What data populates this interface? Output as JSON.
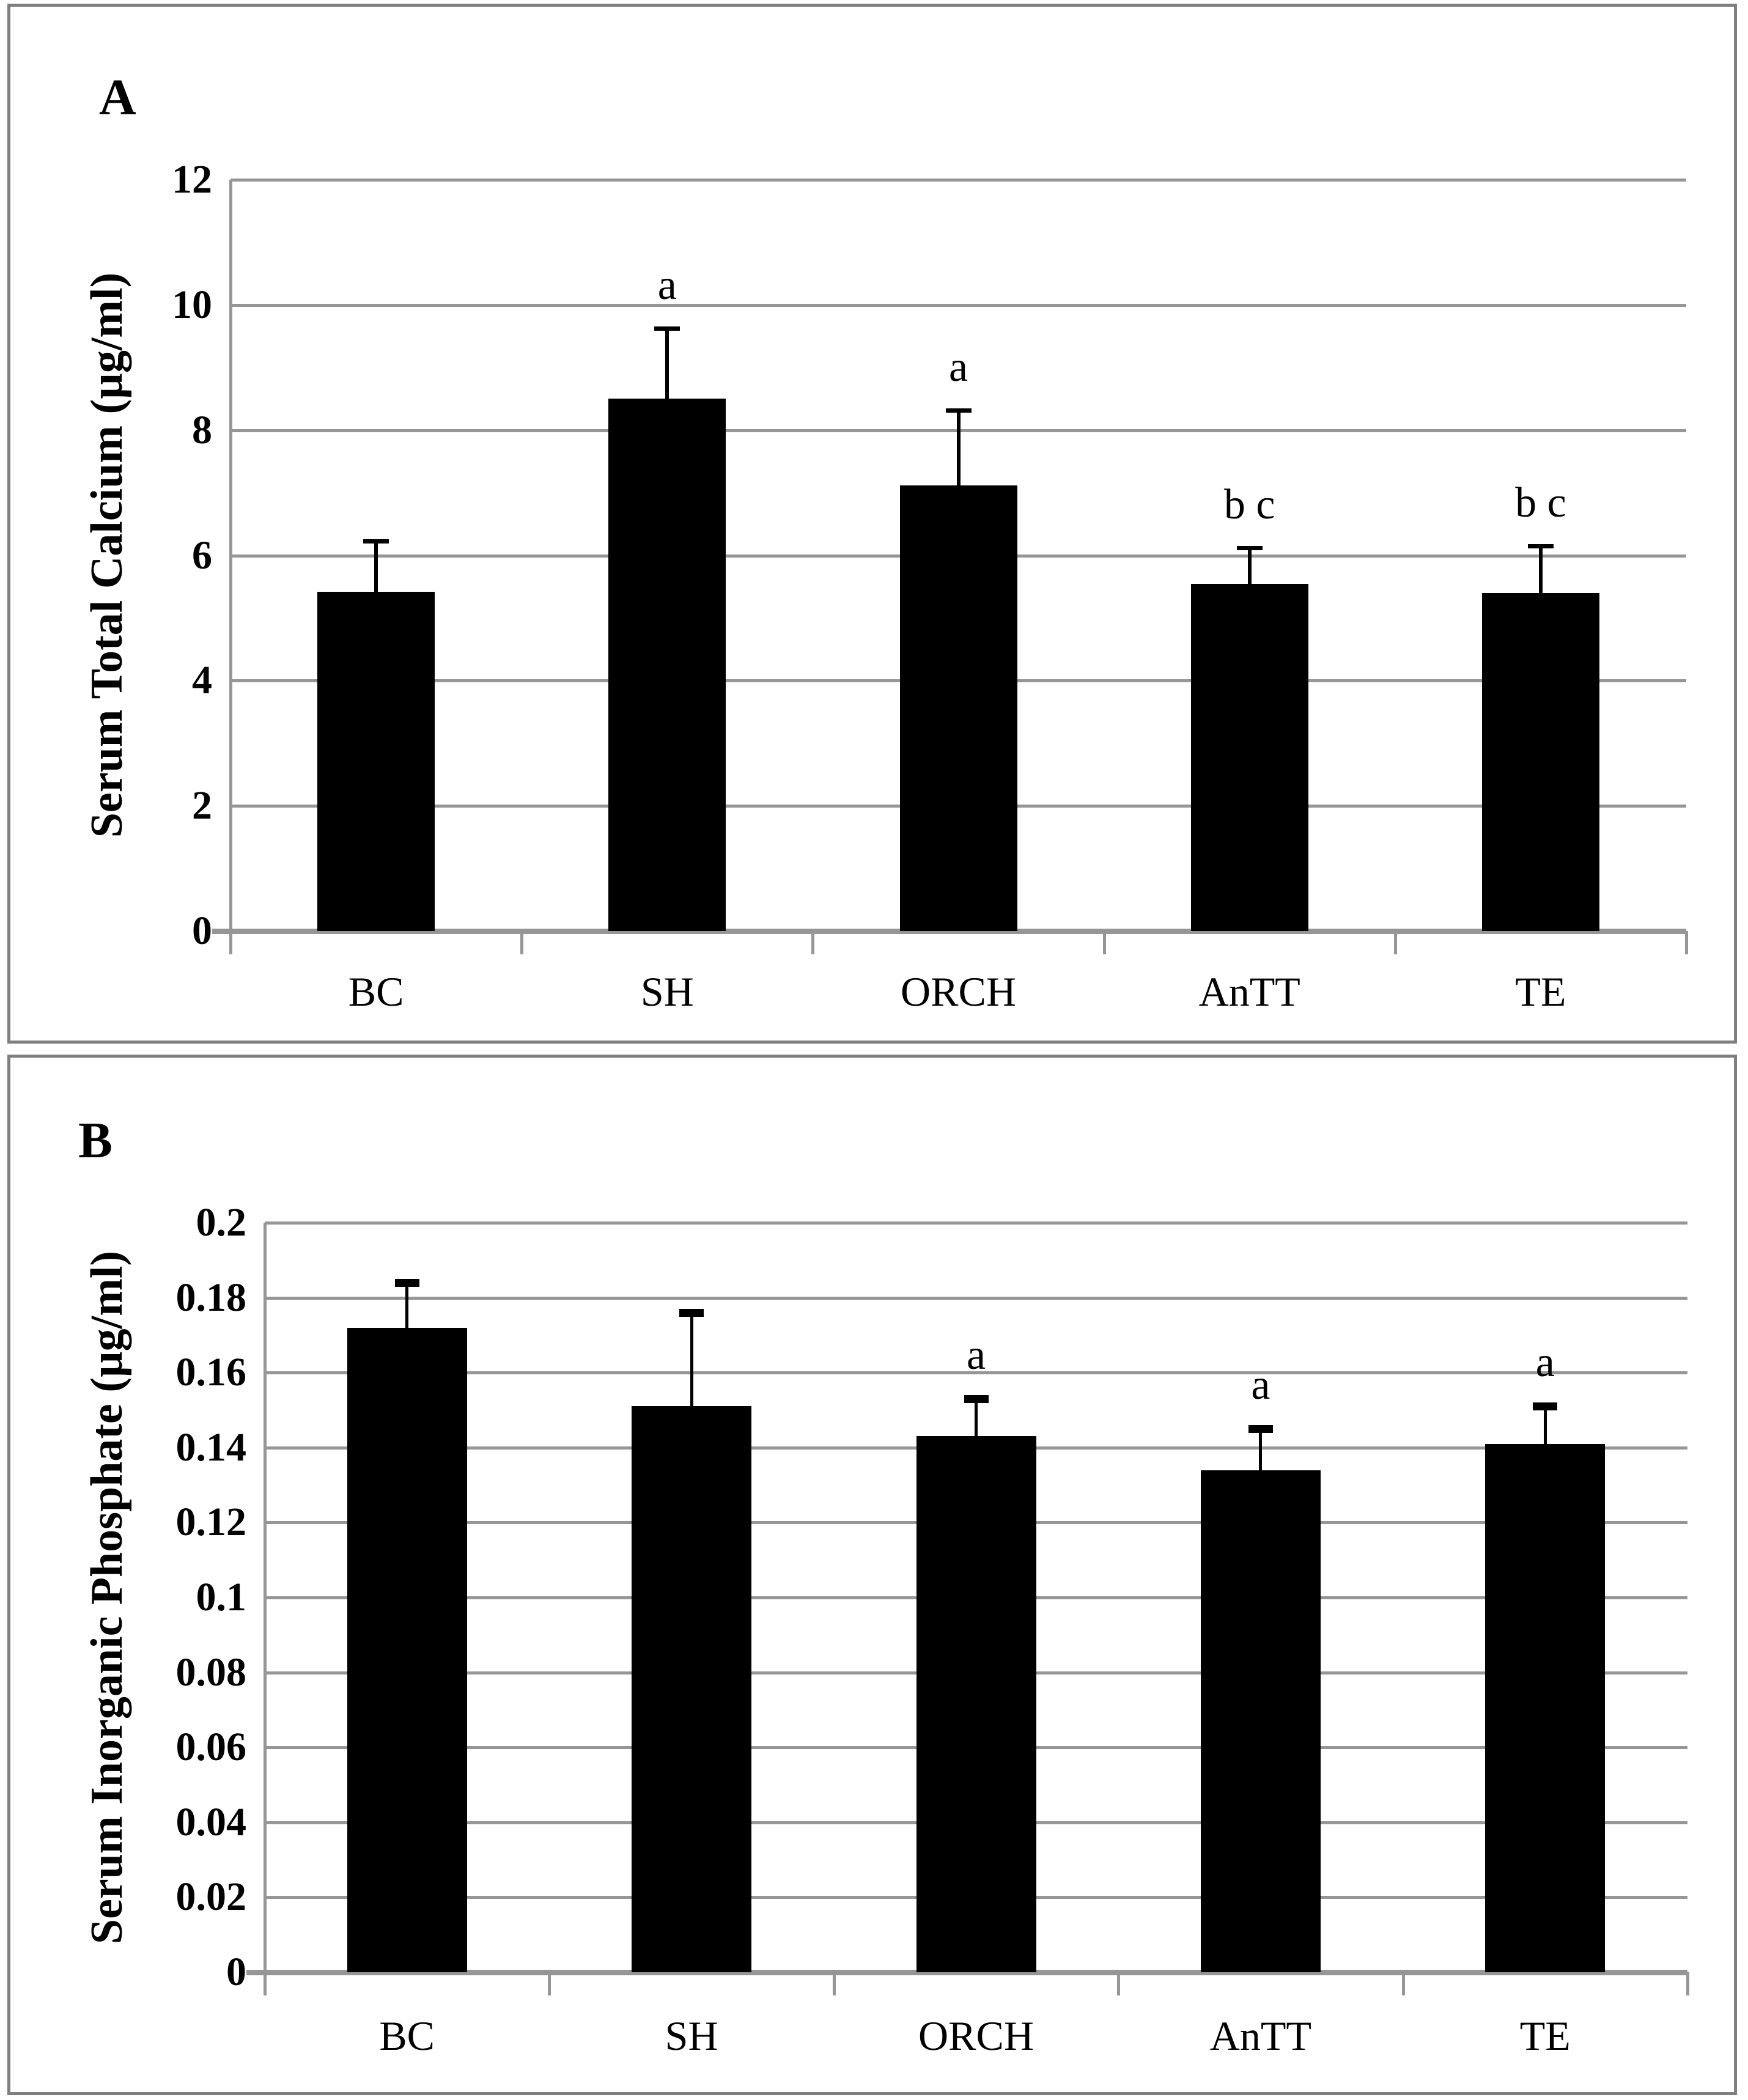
{
  "styles": {
    "bar_color": "#000000",
    "grid_color": "#969696",
    "axis_color": "#969696",
    "panel_border_color": "#7f7f7f",
    "text_color": "#000000"
  },
  "chart_data": [
    {
      "type": "bar",
      "panel_label": "A",
      "categories": [
        "BC",
        "SH",
        "ORCH",
        "AnTT",
        "TE"
      ],
      "values": [
        5.42,
        8.5,
        7.12,
        5.55,
        5.4
      ],
      "errors_upper": [
        0.84,
        1.16,
        1.23,
        0.6,
        0.78
      ],
      "sig_labels": [
        "",
        "a",
        "a",
        "b c",
        "b c"
      ],
      "title": "",
      "xlabel": "",
      "ylabel": "Serum Total Calcium (µg/ml)",
      "ylim": [
        0,
        12
      ],
      "ytick_step": 2,
      "ytick_labels": [
        "12",
        "10",
        "8",
        "6",
        "4",
        "2",
        "0"
      ],
      "legend": "none",
      "grid": "horizontal"
    },
    {
      "type": "bar",
      "panel_label": "B",
      "categories": [
        "BC",
        "SH",
        "ORCH",
        "AnTT",
        "TE"
      ],
      "values": [
        0.172,
        0.151,
        0.143,
        0.134,
        0.141
      ],
      "errors_upper": [
        0.013,
        0.026,
        0.011,
        0.012,
        0.011
      ],
      "sig_labels": [
        "",
        "",
        "a",
        "a",
        "a"
      ],
      "title": "",
      "xlabel": "",
      "ylabel": "Serum Inorganic Phosphate (µg/ml)",
      "ylim": [
        0,
        0.2
      ],
      "ytick_step": 0.02,
      "ytick_labels": [
        "0.2",
        "0.18",
        "0.16",
        "0.14",
        "0.12",
        "0.1",
        "0.08",
        "0.06",
        "0.04",
        "0.02",
        "0"
      ],
      "legend": "none",
      "grid": "horizontal"
    }
  ]
}
